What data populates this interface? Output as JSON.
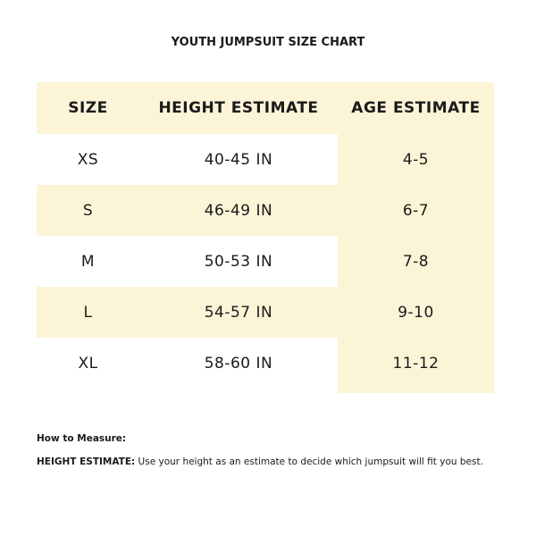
{
  "header": {
    "title": "YOUTH JUMPSUIT SIZE CHART"
  },
  "table": {
    "columns": [
      "SIZE",
      "HEIGHT ESTIMATE",
      "AGE ESTIMATE"
    ],
    "rows": [
      [
        "XS",
        "40-45 IN",
        "4-5"
      ],
      [
        "S",
        "46-49 IN",
        "6-7"
      ],
      [
        "M",
        "50-53 IN",
        "7-8"
      ],
      [
        "L",
        "54-57 IN",
        "9-10"
      ],
      [
        "XL",
        "58-60 IN",
        "11-12"
      ]
    ]
  },
  "notes": {
    "heading": "How to Measure:",
    "items": [
      {
        "term": "HEIGHT ESTIMATE:",
        "text": "Use your height as an estimate to decide which jumpsuit will fit you best."
      }
    ]
  }
}
